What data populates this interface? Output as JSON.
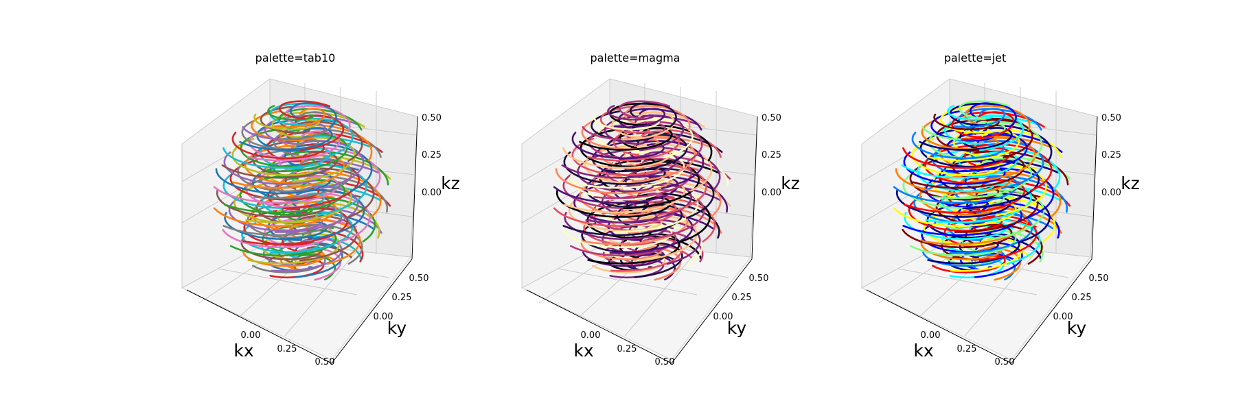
{
  "chart_data": [
    {
      "type": "line3d",
      "title": "palette=tab10",
      "palette": "tab10",
      "colors": [
        "#1f77b4",
        "#ff7f0e",
        "#2ca02c",
        "#d62728",
        "#9467bd",
        "#8c564b",
        "#e377c2",
        "#7f7f7f",
        "#bcbd22",
        "#17becf"
      ],
      "xlabel": "kx",
      "ylabel": "ky",
      "zlabel": "kz",
      "xticks": [
        "0.00",
        "0.25",
        "0.50"
      ],
      "yticks": [
        "0.00",
        "0.25",
        "0.50"
      ],
      "zticks": [
        "0.00",
        "0.25",
        "0.50"
      ],
      "xlim": [
        -0.5,
        0.5
      ],
      "ylim": [
        -0.5,
        0.5
      ],
      "zlim": [
        -0.5,
        0.5
      ],
      "grid": true
    },
    {
      "type": "line3d",
      "title": "palette=magma",
      "palette": "magma",
      "colors": [
        "#000004",
        "#1c1044",
        "#4f127b",
        "#812581",
        "#b5367a",
        "#e55064",
        "#fb8761",
        "#fec287",
        "#fcfdbf"
      ],
      "xlabel": "kx",
      "ylabel": "ky",
      "zlabel": "kz",
      "xticks": [
        "0.00",
        "0.25",
        "0.50"
      ],
      "yticks": [
        "0.00",
        "0.25",
        "0.50"
      ],
      "zticks": [
        "0.00",
        "0.25",
        "0.50"
      ],
      "xlim": [
        -0.5,
        0.5
      ],
      "ylim": [
        -0.5,
        0.5
      ],
      "zlim": [
        -0.5,
        0.5
      ],
      "grid": true
    },
    {
      "type": "line3d",
      "title": "palette=jet",
      "palette": "jet",
      "colors": [
        "#00007f",
        "#0000ff",
        "#007fff",
        "#00ffff",
        "#7fff7f",
        "#ffff00",
        "#ff7f00",
        "#ff0000",
        "#7f0000"
      ],
      "xlabel": "kx",
      "ylabel": "ky",
      "zlabel": "kz",
      "xticks": [
        "0.00",
        "0.25",
        "0.50"
      ],
      "yticks": [
        "0.00",
        "0.25",
        "0.50"
      ],
      "zticks": [
        "0.00",
        "0.25",
        "0.50"
      ],
      "xlim": [
        -0.5,
        0.5
      ],
      "ylim": [
        -0.5,
        0.5
      ],
      "zlim": [
        -0.5,
        0.5
      ],
      "grid": true
    }
  ]
}
